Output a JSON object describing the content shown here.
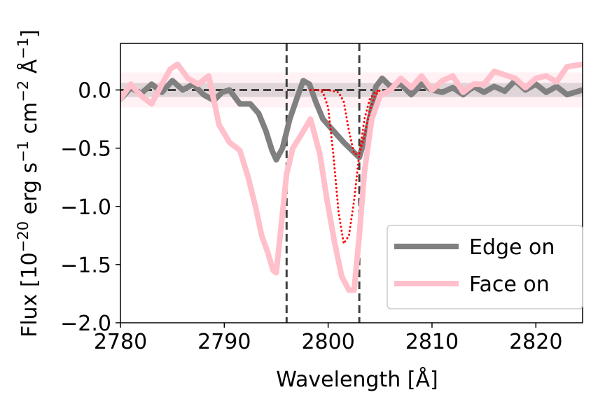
{
  "chart_data": {
    "type": "line",
    "xlabel": "Wavelength [Å]",
    "ylabel_text": "Flux [10",
    "ylabel_exp1": "−20",
    "ylabel_unit1": " erg s",
    "ylabel_exp2": "−1",
    "ylabel_unit2": " cm",
    "ylabel_exp3": "−2",
    "ylabel_unit3": " Å",
    "ylabel_exp4": "−1",
    "ylabel_close": "]",
    "xlim": [
      2780,
      2824.5
    ],
    "ylim": [
      -2.0,
      0.4
    ],
    "x_ticks": [
      2780,
      2790,
      2800,
      2810,
      2820
    ],
    "x_tick_labels": [
      "2780",
      "2790",
      "2800",
      "2810",
      "2820"
    ],
    "y_ticks": [
      -2.0,
      -1.5,
      -1.0,
      -0.5,
      0.0
    ],
    "y_tick_labels": [
      "−2.0",
      "−1.5",
      "−1.0",
      "−0.5",
      "0.0"
    ],
    "vlines": [
      2796.0,
      2803.0
    ],
    "hline": {
      "y": 0.0,
      "x_range": [
        2780,
        2815
      ]
    },
    "bands": [
      {
        "name": "face-on-noise-band",
        "y_range": [
          -0.15,
          0.15
        ],
        "color": "#ffc0cb",
        "alpha": 0.22
      },
      {
        "name": "edge-on-noise-band",
        "y_range": [
          -0.06,
          0.06
        ],
        "color": "#808080",
        "alpha": 0.25
      }
    ],
    "legend": {
      "position": "lower-right",
      "entries": [
        "Edge on",
        "Face on"
      ]
    },
    "series": [
      {
        "name": "Edge on",
        "color": "#808080",
        "style": "solid-thick",
        "x": [
          2780,
          2781,
          2782,
          2783,
          2784,
          2785,
          2786,
          2787,
          2788,
          2789,
          2789.8,
          2790.5,
          2791.5,
          2792.5,
          2793.3,
          2794,
          2794.6,
          2795,
          2795.6,
          2796.3,
          2797,
          2797.6,
          2798.2,
          2798.8,
          2799.5,
          2800.5,
          2801.5,
          2802.3,
          2803,
          2803.6,
          2804.1,
          2804.6,
          2805.2,
          2806,
          2807,
          2808,
          2809,
          2810,
          2811,
          2812,
          2813,
          2814,
          2815,
          2816,
          2817,
          2818,
          2819,
          2820,
          2821,
          2822,
          2823,
          2824.5
        ],
        "y": [
          -0.08,
          0.02,
          -0.03,
          0.05,
          -0.02,
          0.08,
          0.0,
          0.05,
          -0.04,
          -0.09,
          -0.02,
          0.0,
          -0.12,
          -0.12,
          -0.2,
          -0.35,
          -0.52,
          -0.6,
          -0.5,
          -0.25,
          -0.07,
          0.08,
          0.05,
          -0.1,
          -0.25,
          -0.35,
          -0.45,
          -0.52,
          -0.58,
          -0.4,
          -0.2,
          0.03,
          0.1,
          0.03,
          0.05,
          -0.04,
          0.05,
          0.0,
          -0.02,
          0.02,
          -0.04,
          0.03,
          -0.02,
          0.03,
          -0.01,
          0.08,
          0.0,
          0.05,
          -0.02,
          0.03,
          -0.04,
          0.0
        ]
      },
      {
        "name": "Face on",
        "color": "#ffc0cb",
        "style": "solid-thick",
        "x": [
          2780,
          2781,
          2782,
          2783,
          2784,
          2784.8,
          2785.5,
          2786.5,
          2787.5,
          2788.5,
          2789.5,
          2790.5,
          2791.5,
          2792.3,
          2793,
          2793.6,
          2794.2,
          2794.7,
          2795,
          2795.5,
          2796,
          2796.6,
          2797.3,
          2798.3,
          2799.2,
          2799.9,
          2800.6,
          2801.3,
          2802,
          2802.5,
          2803,
          2803.5,
          2804.2,
          2805,
          2806,
          2807,
          2808,
          2809,
          2810,
          2811,
          2812,
          2813,
          2814,
          2815,
          2816,
          2817,
          2818,
          2819,
          2820,
          2821,
          2822,
          2823,
          2824.5
        ],
        "y": [
          -0.08,
          0.05,
          -0.05,
          -0.12,
          0.05,
          0.18,
          0.22,
          0.1,
          0.05,
          0.12,
          -0.3,
          -0.45,
          -0.52,
          -0.75,
          -1.0,
          -1.25,
          -1.4,
          -1.55,
          -1.57,
          -1.15,
          -0.72,
          -0.5,
          -0.4,
          -0.25,
          -0.55,
          -0.95,
          -1.3,
          -1.6,
          -1.72,
          -1.72,
          -1.25,
          -0.7,
          -0.25,
          -0.05,
          0.0,
          0.1,
          0.02,
          0.12,
          0.0,
          0.08,
          0.12,
          -0.02,
          0.05,
          0.05,
          0.16,
          0.13,
          0.1,
          0.02,
          0.1,
          0.12,
          0.07,
          0.2,
          0.22
        ]
      },
      {
        "name": "model-1",
        "color": "#ff0000",
        "style": "dotted",
        "x": [
          2798.3,
          2799,
          2799.5,
          2800,
          2800.5,
          2801,
          2801.5,
          2802,
          2802.5,
          2803,
          2803.5,
          2804,
          2804.5,
          2805
        ],
        "y": [
          0.0,
          0.0,
          -0.02,
          -0.15,
          -0.55,
          -1.05,
          -1.32,
          -1.25,
          -0.95,
          -0.55,
          -0.25,
          -0.08,
          -0.02,
          0.0
        ]
      },
      {
        "name": "model-2",
        "color": "#ff0000",
        "style": "dotted",
        "x": [
          2798.3,
          2799,
          2800,
          2801,
          2801.5,
          2802,
          2802.5,
          2803,
          2803.5,
          2804,
          2804.5,
          2805
        ],
        "y": [
          0.0,
          0.0,
          0.0,
          -0.02,
          -0.1,
          -0.35,
          -0.55,
          -0.55,
          -0.4,
          -0.18,
          -0.05,
          0.0
        ]
      }
    ]
  }
}
